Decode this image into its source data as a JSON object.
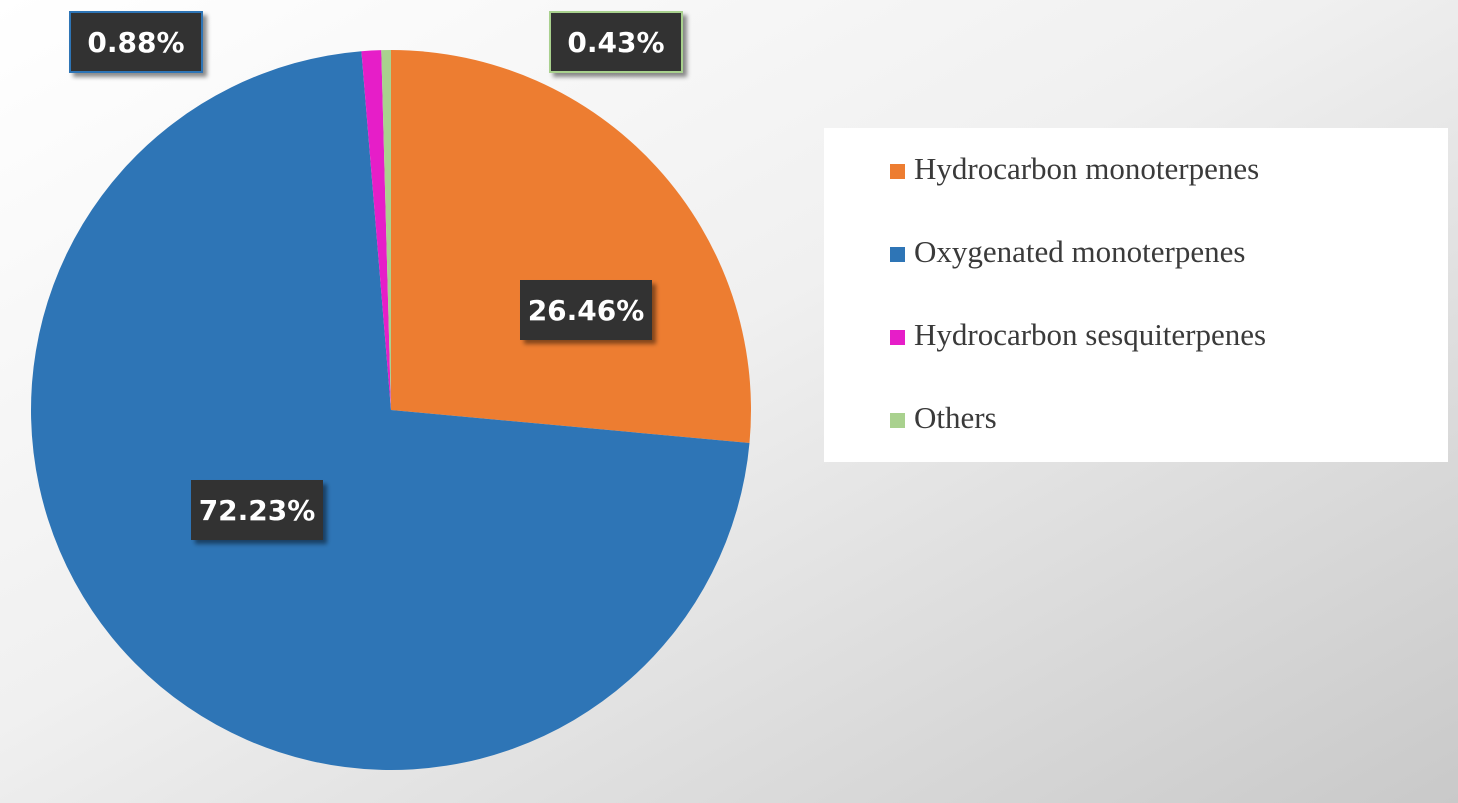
{
  "chart_data": {
    "type": "pie",
    "categories": [
      "Hydrocarbon monoterpenes",
      "Oxygenated monoterpenes",
      "Hydrocarbon sesquiterpenes",
      "Others"
    ],
    "values": [
      26.46,
      72.23,
      0.88,
      0.43
    ],
    "value_labels": [
      "26.46%",
      "72.23%",
      "0.88%",
      "0.43%"
    ],
    "colors": [
      "#ed7d31",
      "#2e75b6",
      "#e61ec8",
      "#a9d18e"
    ],
    "legend": "right"
  }
}
